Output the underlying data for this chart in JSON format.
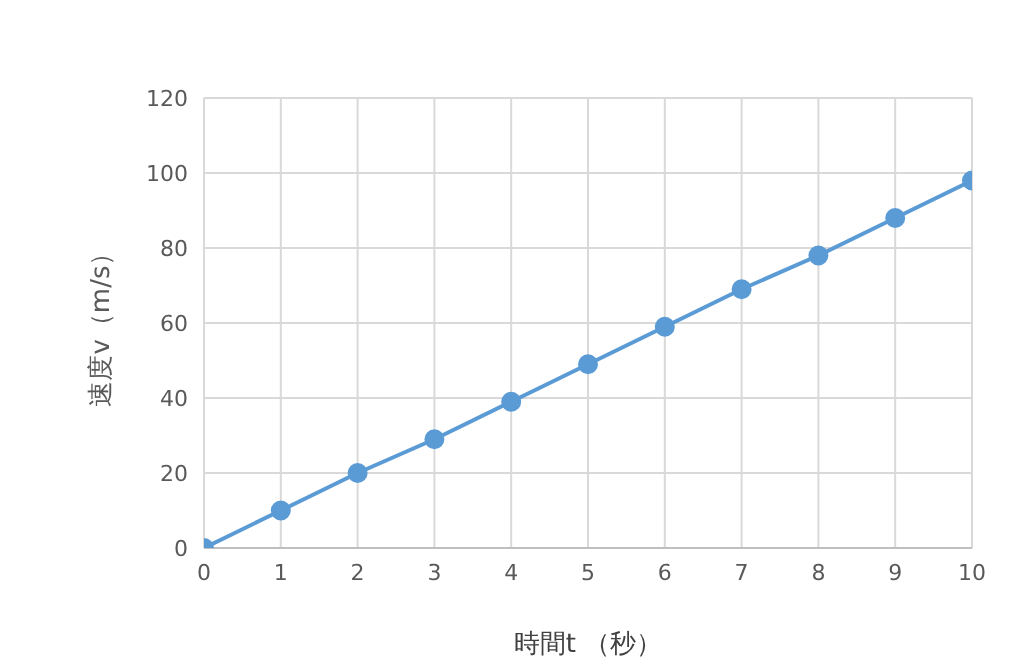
{
  "chart_data": {
    "type": "line",
    "xlabel": "時間t （秒）",
    "ylabel": "速度v（m/s）",
    "x": [
      0,
      1,
      2,
      3,
      4,
      5,
      6,
      7,
      8,
      9,
      10
    ],
    "series": [
      {
        "color": "#5b9bd5",
        "values": [
          0,
          10,
          20,
          29,
          39,
          49,
          59,
          69,
          78,
          88,
          98
        ]
      }
    ],
    "xlim": [
      0,
      10
    ],
    "xticks": [
      0,
      1,
      2,
      3,
      4,
      5,
      6,
      7,
      8,
      9,
      10
    ],
    "ylim": [
      0,
      120
    ],
    "yticks": [
      0,
      20,
      40,
      60,
      80,
      100,
      120
    ],
    "grid": true,
    "legend": false,
    "marker": "circle",
    "line_style": "solid"
  }
}
